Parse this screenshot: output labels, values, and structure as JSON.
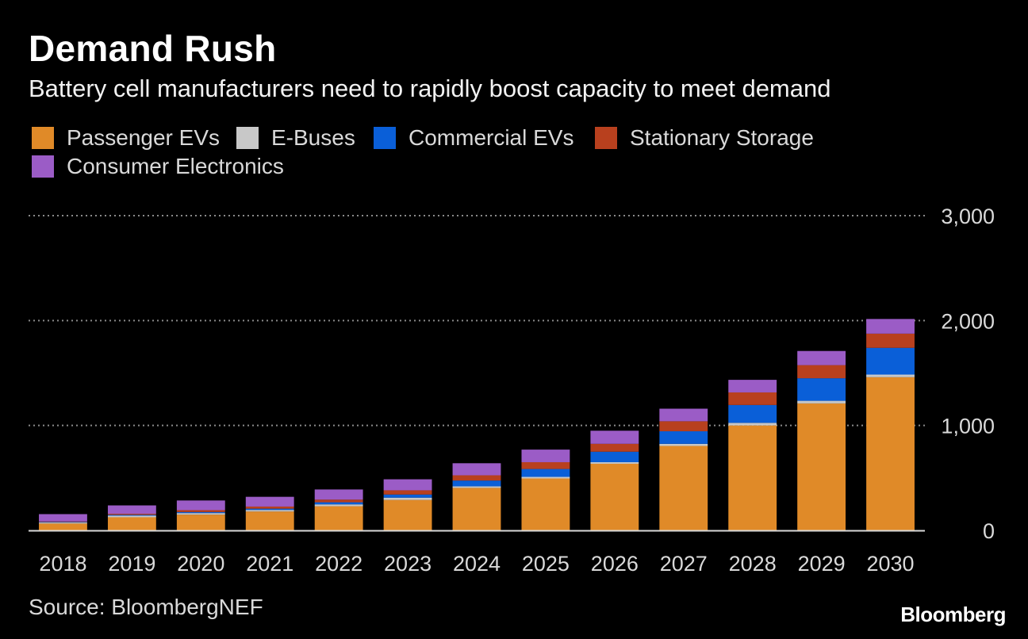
{
  "header": {
    "title": "Demand Rush",
    "subtitle": "Battery cell manufacturers need to rapidly boost capacity to meet demand"
  },
  "footer": {
    "source": "Source: BloombergNEF",
    "brand": "Bloomberg"
  },
  "colors": {
    "background": "#000000",
    "gridline": "#8a8a8a",
    "axis": "#d9d9d9"
  },
  "chart_data": {
    "type": "bar",
    "stacked": true,
    "title": "Demand Rush",
    "subtitle": "Battery cell manufacturers need to rapidly boost capacity to meet demand",
    "categories": [
      "2018",
      "2019",
      "2020",
      "2021",
      "2022",
      "2023",
      "2024",
      "2025",
      "2026",
      "2027",
      "2028",
      "2029",
      "2030"
    ],
    "series": [
      {
        "name": "Passenger EVs",
        "color": "#e08a28",
        "values": [
          65,
          125,
          150,
          180,
          230,
          290,
          405,
          495,
          635,
          805,
          1000,
          1210,
          1460
        ]
      },
      {
        "name": "E-Buses",
        "color": "#c8c8c8",
        "values": [
          10,
          15,
          15,
          15,
          18,
          22,
          15,
          15,
          15,
          20,
          25,
          25,
          25
        ]
      },
      {
        "name": "Commercial EVs",
        "color": "#0a5fd8",
        "values": [
          5,
          8,
          10,
          12,
          20,
          30,
          55,
          75,
          100,
          120,
          170,
          215,
          255
        ]
      },
      {
        "name": "Stationary Storage",
        "color": "#b8401e",
        "values": [
          5,
          10,
          18,
          20,
          25,
          40,
          50,
          65,
          75,
          95,
          120,
          125,
          135
        ]
      },
      {
        "name": "Consumer Electronics",
        "color": "#9b5cc6",
        "values": [
          70,
          80,
          92,
          93,
          97,
          105,
          115,
          120,
          125,
          120,
          120,
          135,
          140
        ]
      }
    ],
    "ylim": [
      0,
      3000
    ],
    "yticks": [
      0,
      1000,
      2000,
      3000
    ],
    "ytick_labels": [
      "0",
      "1,000",
      "2,000",
      "3,000"
    ],
    "xlabel": "",
    "ylabel": "",
    "grid": true,
    "legend_position": "top-left"
  }
}
